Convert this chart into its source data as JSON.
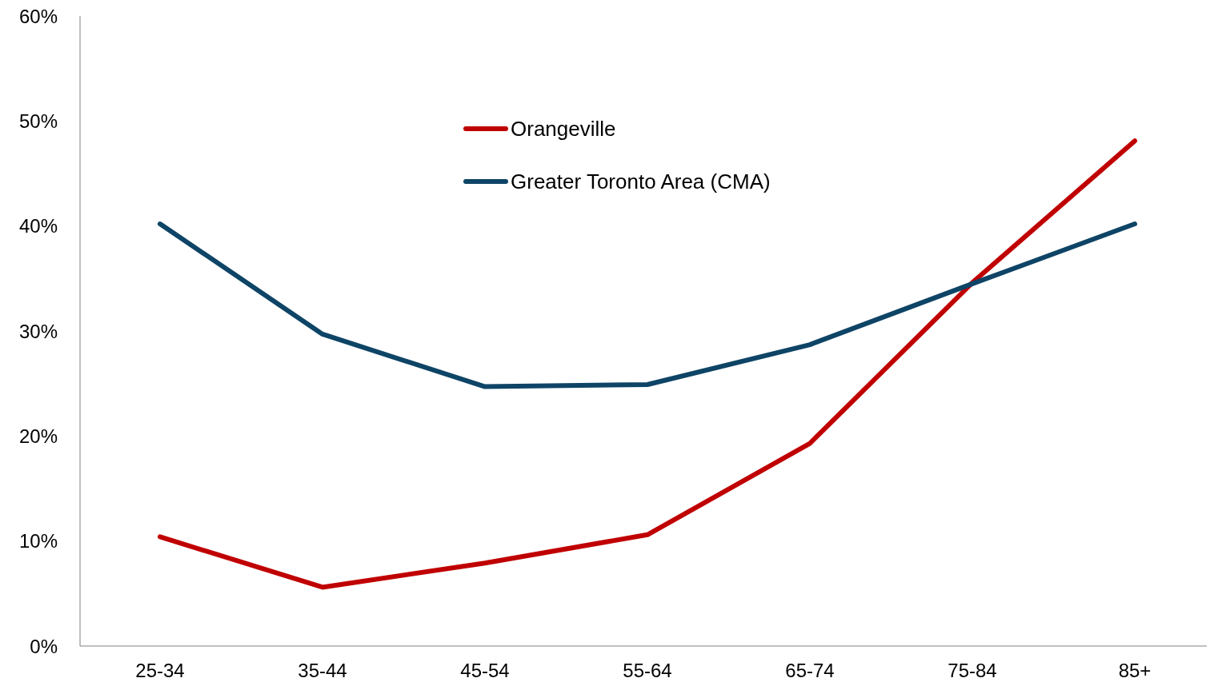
{
  "chart_data": {
    "type": "line",
    "categories": [
      "25-34",
      "35-44",
      "45-54",
      "55-64",
      "65-74",
      "75-84",
      "85+"
    ],
    "series": [
      {
        "name": "Orangeville",
        "color": "#c00000",
        "values": [
          10.4,
          5.6,
          7.9,
          10.6,
          19.3,
          34.6,
          48.1
        ]
      },
      {
        "name": "Greater Toronto Area (CMA)",
        "color": "#0e4466",
        "values": [
          40.2,
          29.7,
          24.7,
          24.9,
          28.7,
          34.5,
          40.2
        ]
      }
    ],
    "ylim": [
      0,
      60
    ],
    "yticks": [
      {
        "value": 0,
        "label": "0%"
      },
      {
        "value": 10,
        "label": "10%"
      },
      {
        "value": 20,
        "label": "20%"
      },
      {
        "value": 30,
        "label": "30%"
      },
      {
        "value": 40,
        "label": "40%"
      },
      {
        "value": 50,
        "label": "50%"
      },
      {
        "value": 60,
        "label": "60%"
      }
    ],
    "grid": false,
    "legend": "top",
    "marker": "none",
    "line_style": "solid"
  }
}
